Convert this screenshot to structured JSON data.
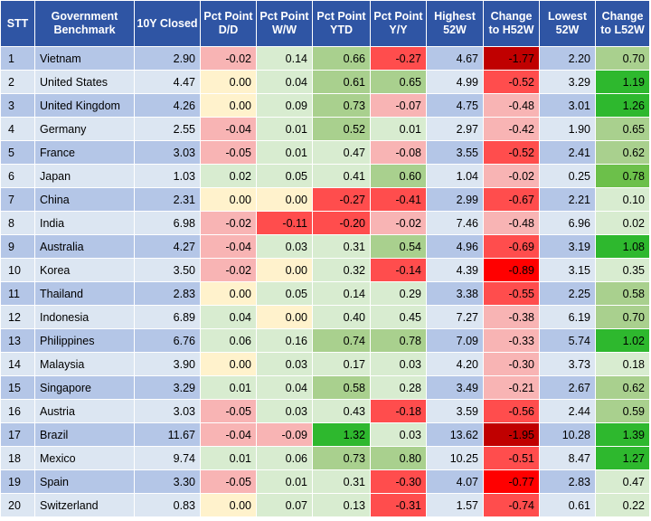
{
  "headers": [
    "STT",
    "Government Benchmark",
    "10Y Closed",
    "Pct Point D/D",
    "Pct Point W/W",
    "Pct Point YTD",
    "Pct Point Y/Y",
    "Highest 52W",
    "Change to H52W",
    "Lowest 52W",
    "Change to L52W"
  ],
  "colors": {
    "header_bg": "#2f55a4",
    "row_odd": "#b4c6e7",
    "row_even": "#dce6f2",
    "neutral_yellow": "#fff2cc",
    "light_red": "#f8b4b4",
    "red": "#ff4d4d",
    "strong_red": "#ff0000",
    "dark_red": "#c00000",
    "light_green": "#d8ecd0",
    "mid_green": "#a9d08e",
    "green": "#6cc04a",
    "strong_green": "#2eb82e"
  },
  "rows": [
    [
      "1",
      "Vietnam",
      "2.90",
      "-0.02",
      "0.14",
      "0.66",
      "-0.27",
      "4.67",
      "-1.77",
      "2.20",
      "0.70"
    ],
    [
      "2",
      "United States",
      "4.47",
      "0.00",
      "0.04",
      "0.61",
      "0.65",
      "4.99",
      "-0.52",
      "3.29",
      "1.19"
    ],
    [
      "3",
      "United Kingdom",
      "4.26",
      "0.00",
      "0.09",
      "0.73",
      "-0.07",
      "4.75",
      "-0.48",
      "3.01",
      "1.26"
    ],
    [
      "4",
      "Germany",
      "2.55",
      "-0.04",
      "0.01",
      "0.52",
      "0.01",
      "2.97",
      "-0.42",
      "1.90",
      "0.65"
    ],
    [
      "5",
      "France",
      "3.03",
      "-0.05",
      "0.01",
      "0.47",
      "-0.08",
      "3.55",
      "-0.52",
      "2.41",
      "0.62"
    ],
    [
      "6",
      "Japan",
      "1.03",
      "0.02",
      "0.05",
      "0.41",
      "0.60",
      "1.04",
      "-0.02",
      "0.25",
      "0.78"
    ],
    [
      "7",
      "China",
      "2.31",
      "0.00",
      "0.00",
      "-0.27",
      "-0.41",
      "2.99",
      "-0.67",
      "2.21",
      "0.10"
    ],
    [
      "8",
      "India",
      "6.98",
      "-0.02",
      "-0.11",
      "-0.20",
      "-0.02",
      "7.46",
      "-0.48",
      "6.96",
      "0.02"
    ],
    [
      "9",
      "Australia",
      "4.27",
      "-0.04",
      "0.03",
      "0.31",
      "0.54",
      "4.96",
      "-0.69",
      "3.19",
      "1.08"
    ],
    [
      "10",
      "Korea",
      "3.50",
      "-0.02",
      "0.00",
      "0.32",
      "-0.14",
      "4.39",
      "-0.89",
      "3.15",
      "0.35"
    ],
    [
      "11",
      "Thailand",
      "2.83",
      "0.00",
      "0.05",
      "0.14",
      "0.29",
      "3.38",
      "-0.55",
      "2.25",
      "0.58"
    ],
    [
      "12",
      "Indonesia",
      "6.89",
      "0.04",
      "0.00",
      "0.40",
      "0.45",
      "7.27",
      "-0.38",
      "6.19",
      "0.70"
    ],
    [
      "13",
      "Philippines",
      "6.76",
      "0.06",
      "0.16",
      "0.74",
      "0.78",
      "7.09",
      "-0.33",
      "5.74",
      "1.02"
    ],
    [
      "14",
      "Malaysia",
      "3.90",
      "0.00",
      "0.03",
      "0.17",
      "0.03",
      "4.20",
      "-0.30",
      "3.73",
      "0.18"
    ],
    [
      "15",
      "Singapore",
      "3.29",
      "0.01",
      "0.04",
      "0.58",
      "0.28",
      "3.49",
      "-0.21",
      "2.67",
      "0.62"
    ],
    [
      "16",
      "Austria",
      "3.03",
      "-0.05",
      "0.03",
      "0.43",
      "-0.18",
      "3.59",
      "-0.56",
      "2.44",
      "0.59"
    ],
    [
      "17",
      "Brazil",
      "11.67",
      "-0.04",
      "-0.09",
      "1.32",
      "0.03",
      "13.62",
      "-1.95",
      "10.28",
      "1.39"
    ],
    [
      "18",
      "Mexico",
      "9.74",
      "0.01",
      "0.06",
      "0.73",
      "0.80",
      "10.25",
      "-0.51",
      "8.47",
      "1.27"
    ],
    [
      "19",
      "Spain",
      "3.30",
      "-0.05",
      "0.01",
      "0.31",
      "-0.30",
      "4.07",
      "-0.77",
      "2.83",
      "0.47"
    ],
    [
      "20",
      "Switzerland",
      "0.83",
      "0.00",
      "0.07",
      "0.13",
      "-0.31",
      "1.57",
      "-0.74",
      "0.61",
      "0.22"
    ]
  ]
}
